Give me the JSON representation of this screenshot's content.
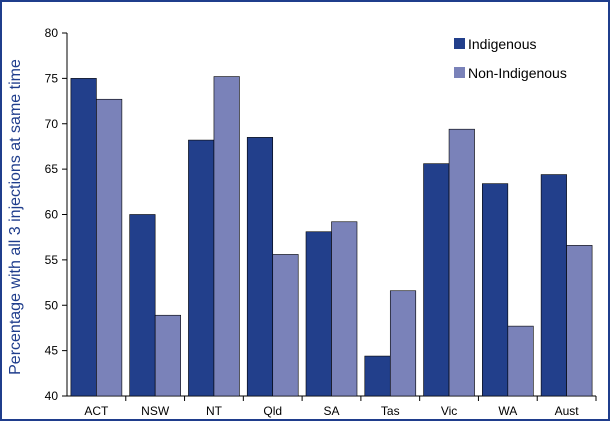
{
  "colors": {
    "frame": "#1f3d8c",
    "axis": "#000000",
    "text": "#000000",
    "ylabel": "#1f3d8c",
    "indigenous": "#223f8b",
    "non_indigenous": "#7a82b9",
    "background": "#ffffff"
  },
  "chart_data": {
    "type": "bar",
    "title": "",
    "xlabel": "",
    "ylabel": "Percentage with all 3 injections at same time",
    "ylim": [
      40,
      80
    ],
    "yticks": [
      40,
      45,
      50,
      55,
      60,
      65,
      70,
      75,
      80
    ],
    "grid": false,
    "legend_position": "top-right",
    "categories": [
      "ACT",
      "NSW",
      "NT",
      "Qld",
      "SA",
      "Tas",
      "Vic",
      "WA",
      "Aust"
    ],
    "series": [
      {
        "name": "Indigenous",
        "color_key": "indigenous",
        "values": [
          75.0,
          60.0,
          68.2,
          68.5,
          58.1,
          44.4,
          65.6,
          63.4,
          64.4
        ]
      },
      {
        "name": "Non-Indigenous",
        "color_key": "non_indigenous",
        "values": [
          72.7,
          48.9,
          75.2,
          55.6,
          59.2,
          51.6,
          69.4,
          47.7,
          56.6
        ]
      }
    ]
  }
}
